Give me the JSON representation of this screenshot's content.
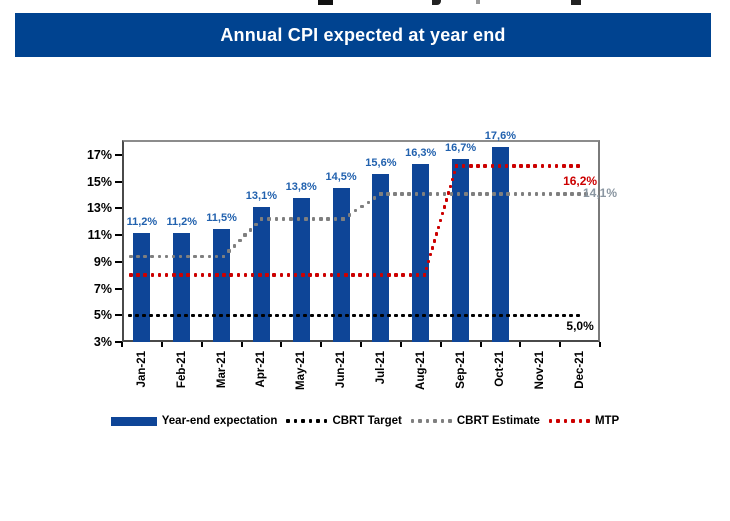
{
  "banner": {
    "title": "Annual CPI expected at year end"
  },
  "colors": {
    "banner_bg": "#004390",
    "banner_fg": "#FFFFFF",
    "bar": "#0E4597",
    "bar_label": "#2161AE",
    "target": "#000000",
    "estimate": "#7F7F7F",
    "estimate_label": "#8A96A1",
    "mtp": "#CC0000",
    "axis_text": "#000000"
  },
  "chart_data": {
    "type": "bar",
    "title": "Annual CPI expected at year end",
    "grid": false,
    "legend_position": "bottom",
    "categories": [
      "Jan-21",
      "Feb-21",
      "Mar-21",
      "Apr-21",
      "May-21",
      "Jun-21",
      "Jul-21",
      "Aug-21",
      "Sep-21",
      "Oct-21",
      "Nov-21",
      "Dec-21"
    ],
    "y_axis": {
      "ticks": [
        3,
        5,
        7,
        9,
        11,
        13,
        15,
        17
      ],
      "tick_labels": [
        "3%",
        "5%",
        "7%",
        "9%",
        "11%",
        "13%",
        "15%",
        "17%"
      ],
      "ylim": [
        3,
        18.13
      ],
      "unit": "%"
    },
    "bar_series": {
      "name": "Year-end expectation",
      "values": [
        11.2,
        11.2,
        11.5,
        13.1,
        13.8,
        14.5,
        15.6,
        16.3,
        16.7,
        17.6,
        null,
        null
      ],
      "labels": [
        "11,2%",
        "11,2%",
        "11,5%",
        "13,1%",
        "13,8%",
        "14,5%",
        "15,6%",
        "16,3%",
        "16,7%",
        "17,6%",
        "",
        ""
      ]
    },
    "line_series": [
      {
        "name": "CBRT Target",
        "color_key": "target",
        "values_by_period": "5.0 for Jan-21 through Dec-21",
        "points": [
          [
            -0.3,
            5.0
          ],
          [
            10.95,
            5.0
          ]
        ],
        "end_label": {
          "text": "5,0%",
          "pos": [
            11.0,
            4.1
          ],
          "color_key": "target"
        }
      },
      {
        "name": "CBRT Estimate",
        "color_key": "estimate",
        "values_by_period": "9.4 Jan-Mar, 12.2 Apr-Jun, 14.1 Jul-Dec",
        "points": [
          [
            -0.28,
            9.4
          ],
          [
            2.05,
            9.4
          ],
          [
            3.0,
            12.2
          ],
          [
            5.05,
            12.2
          ],
          [
            6.0,
            14.1
          ],
          [
            11.15,
            14.1
          ]
        ],
        "end_label": {
          "text": "14,1%",
          "pos": [
            11.5,
            14.05
          ],
          "color_key": "estimate_label"
        }
      },
      {
        "name": "MTP",
        "color_key": "mtp",
        "values_by_period": "8.0 Jan-Aug, 16.2 Sep-Dec",
        "points": [
          [
            -0.28,
            8.0
          ],
          [
            7.1,
            8.0
          ],
          [
            7.9,
            16.2
          ],
          [
            10.95,
            16.2
          ]
        ],
        "end_label": {
          "text": "16,2%",
          "pos": [
            11.0,
            15.0
          ],
          "color_key": "mtp"
        }
      }
    ],
    "legend": [
      {
        "label": "Year-end expectation",
        "swatch": "bar",
        "color_key": "bar"
      },
      {
        "label": "CBRT Target",
        "swatch": "dots",
        "color_key": "target"
      },
      {
        "label": "CBRT Estimate",
        "swatch": "dots",
        "color_key": "estimate"
      },
      {
        "label": "MTP",
        "swatch": "dots",
        "color_key": "mtp"
      }
    ]
  }
}
